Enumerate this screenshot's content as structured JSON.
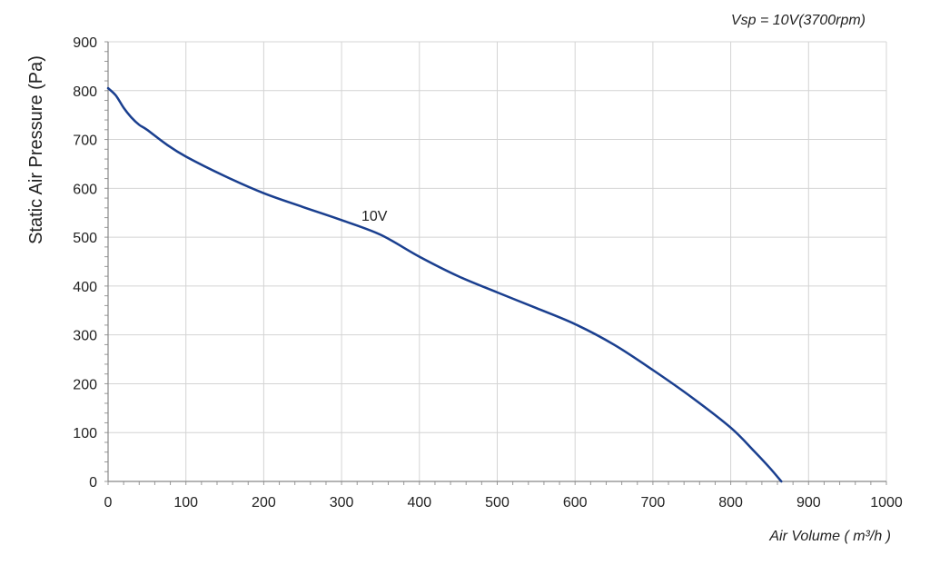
{
  "chart_data": {
    "type": "line",
    "annotation": "Vsp = 10V(3700rpm)",
    "xlabel": "Air Volume ( m³/h )",
    "ylabel": "Static Air Pressure  (Pa)",
    "xlim": [
      0,
      1000
    ],
    "ylim": [
      0,
      900
    ],
    "x_ticks": [
      0,
      100,
      200,
      300,
      400,
      500,
      600,
      700,
      800,
      900,
      1000
    ],
    "y_ticks": [
      0,
      100,
      200,
      300,
      400,
      500,
      600,
      700,
      800,
      900
    ],
    "grid": true,
    "series": [
      {
        "name": "10V",
        "color": "#1a3f8f",
        "x": [
          0,
          10,
          20,
          30,
          40,
          50,
          75,
          100,
          150,
          200,
          250,
          300,
          350,
          400,
          450,
          500,
          550,
          600,
          650,
          700,
          750,
          800,
          830,
          850,
          865
        ],
        "y": [
          805,
          790,
          765,
          745,
          730,
          720,
          690,
          665,
          625,
          590,
          562,
          535,
          505,
          460,
          420,
          387,
          355,
          322,
          280,
          228,
          172,
          110,
          62,
          28,
          0
        ]
      }
    ]
  }
}
